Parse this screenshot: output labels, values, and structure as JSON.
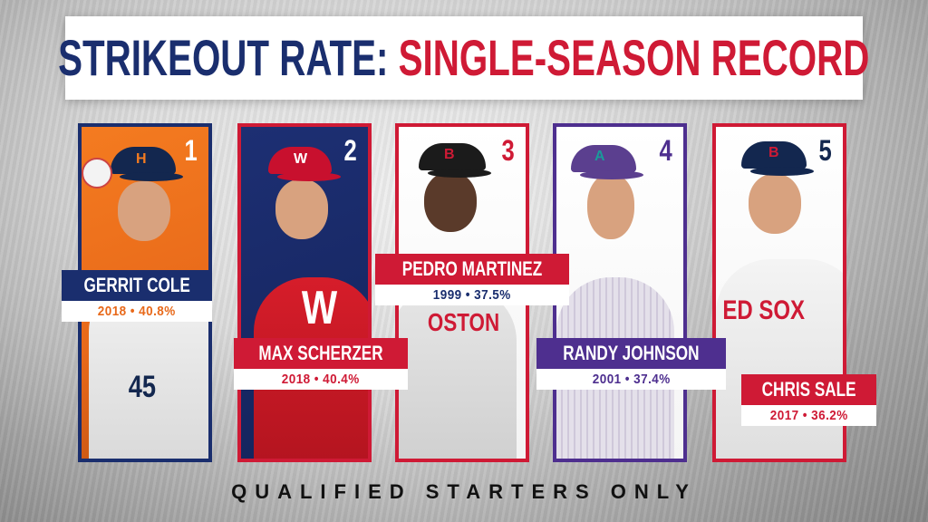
{
  "title": {
    "part1": "STRIKEOUT RATE:",
    "part2": "SINGLE-SEASON RECORD"
  },
  "colors": {
    "navy": "#1a2e6e",
    "red": "#cf1a35",
    "purple": "#4e2f8f"
  },
  "players": [
    {
      "rank": "1",
      "name": "GERRIT COLE",
      "stat": "2018 • 40.8%",
      "team_logo": "H",
      "jersey": "45"
    },
    {
      "rank": "2",
      "name": "MAX SCHERZER",
      "stat": "2018 • 40.4%",
      "team_logo": "W",
      "jersey": "W"
    },
    {
      "rank": "3",
      "name": "PEDRO MARTINEZ",
      "stat": "1999 • 37.5%",
      "team_logo": "B",
      "jersey": "OSTON"
    },
    {
      "rank": "4",
      "name": "RANDY JOHNSON",
      "stat": "2001 • 37.4%",
      "team_logo": "A",
      "jersey": ""
    },
    {
      "rank": "5",
      "name": "CHRIS SALE",
      "stat": "2017 • 36.2%",
      "team_logo": "B",
      "jersey": "ED SOX"
    }
  ],
  "footer": "QUALIFIED STARTERS ONLY"
}
